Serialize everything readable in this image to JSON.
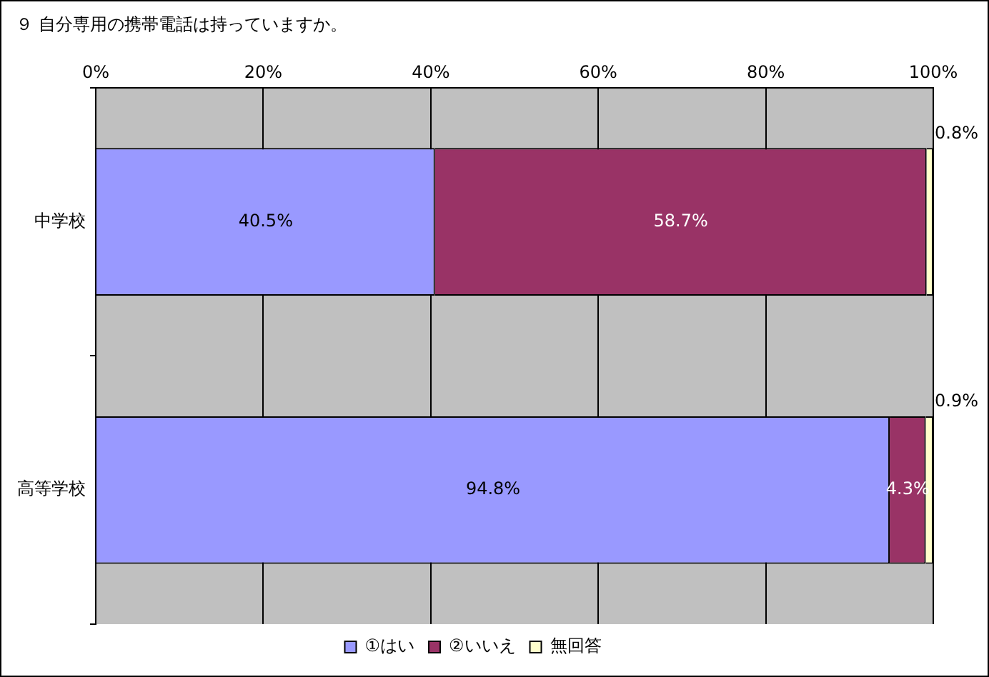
{
  "chart_data": {
    "type": "bar",
    "orientation": "horizontal",
    "stacked": true,
    "title": "９ 自分専用の携帯電話は持っていますか。",
    "categories": [
      "中学校",
      "高等学校"
    ],
    "series": [
      {
        "name": "①はい",
        "color": "#9999ff",
        "values": [
          40.5,
          94.8
        ],
        "value_labels": [
          "40.5%",
          "94.8%"
        ]
      },
      {
        "name": "②いいえ",
        "color": "#993366",
        "values": [
          58.7,
          4.3
        ],
        "value_labels": [
          "58.7%",
          "4.3%"
        ]
      },
      {
        "name": "無回答",
        "color": "#ffffcc",
        "values": [
          0.8,
          0.9
        ],
        "value_labels": [
          "0.8%",
          "0.9%"
        ]
      }
    ],
    "xlim": [
      0,
      100
    ],
    "xticks": [
      {
        "value": 0,
        "label": "0%"
      },
      {
        "value": 20,
        "label": "20%"
      },
      {
        "value": 40,
        "label": "40%"
      },
      {
        "value": 60,
        "label": "60%"
      },
      {
        "value": 80,
        "label": "80%"
      },
      {
        "value": 100,
        "label": "100%"
      }
    ],
    "grid": "x",
    "legend": "bottom"
  }
}
